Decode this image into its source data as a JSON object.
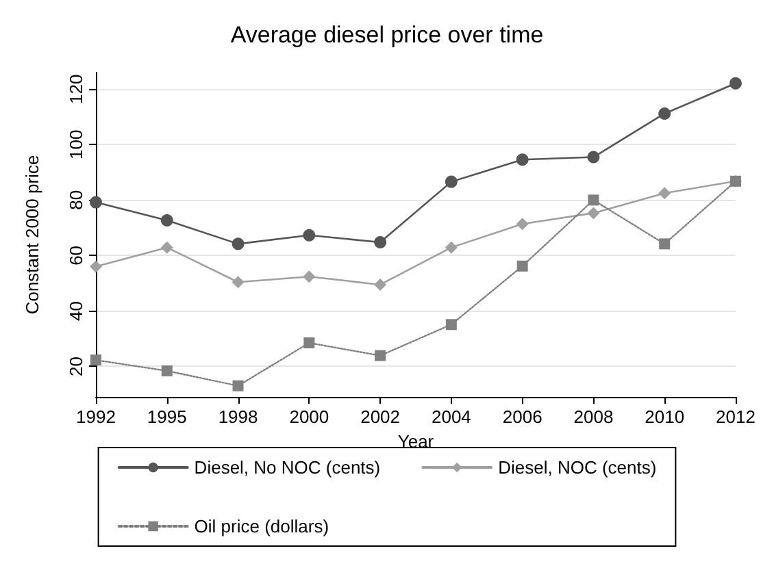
{
  "chart_data": {
    "type": "line",
    "title": "Average diesel price over time",
    "xlabel": "Year",
    "ylabel": "Constant 2000 price",
    "categories": [
      "1992",
      "1995",
      "1998",
      "2000",
      "2002",
      "2004",
      "2006",
      "2008",
      "2010",
      "2012"
    ],
    "ylim": [
      9,
      126
    ],
    "yticks": [
      20,
      40,
      60,
      80,
      100,
      120
    ],
    "grid": "y",
    "legend": "bottom",
    "series": [
      {
        "name": "Diesel, No NOC (cents)",
        "color": "#555555",
        "marker": "circle",
        "line_style": "solid",
        "values": [
          79.2,
          72.7,
          64.2,
          67.3,
          64.8,
          86.6,
          94.6,
          95.5,
          111.2,
          122.1
        ]
      },
      {
        "name": "Diesel, NOC (cents)",
        "color": "#a0a0a0",
        "marker": "diamond",
        "line_style": "solid",
        "values": [
          56,
          62.9,
          50.4,
          52.4,
          49.5,
          62.9,
          71.4,
          75.3,
          82.5,
          86.8
        ]
      },
      {
        "name": "Oil price (dollars)",
        "color": "#808080",
        "marker": "square",
        "line_style": "dotted",
        "values": [
          22.3,
          18.4,
          13,
          28.5,
          23.9,
          35.1,
          56.2,
          80,
          64.2,
          86.8
        ]
      }
    ]
  }
}
